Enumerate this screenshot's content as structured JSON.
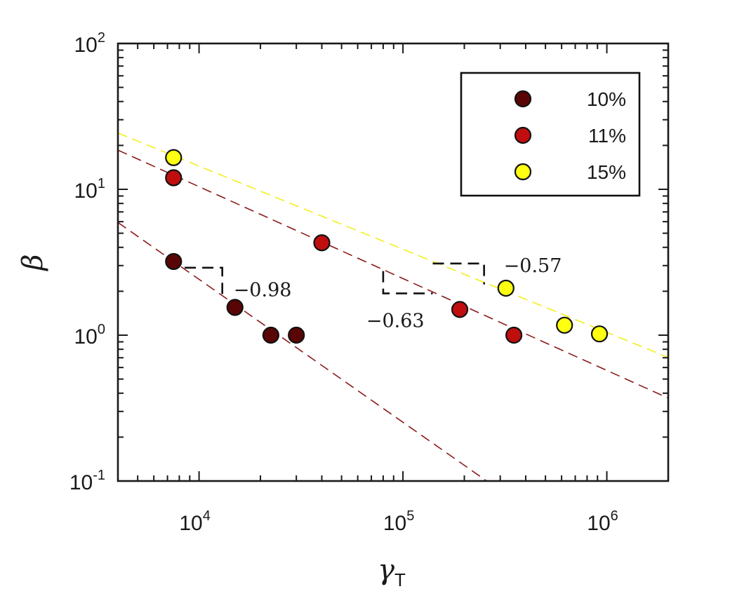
{
  "chart_data": {
    "type": "scatter",
    "xscale": "log",
    "yscale": "log",
    "xlim": [
      4000,
      2000000
    ],
    "ylim": [
      0.1,
      100
    ],
    "xlabel": {
      "symbol": "γ",
      "subscript": "T"
    },
    "ylabel": "β",
    "xticks": [
      {
        "base": "10",
        "exp": "4",
        "value": 10000
      },
      {
        "base": "10",
        "exp": "5",
        "value": 100000
      },
      {
        "base": "10",
        "exp": "6",
        "value": 1000000
      }
    ],
    "yticks": [
      {
        "base": "10",
        "exp": "-1",
        "value": 0.1
      },
      {
        "base": "10",
        "exp": "0",
        "value": 1
      },
      {
        "base": "10",
        "exp": "1",
        "value": 10
      },
      {
        "base": "10",
        "exp": "2",
        "value": 100
      }
    ],
    "legend_position": "top-right",
    "series": [
      {
        "name": "10%",
        "color": "#5a0505",
        "x": [
          7500,
          15000,
          22500,
          30000
        ],
        "y": [
          3.2,
          1.55,
          1.0,
          1.0
        ],
        "fit": {
          "slope": -0.98,
          "x0": 7500,
          "y0": 3.2,
          "line_color": "#8b1a1a"
        }
      },
      {
        "name": "11%",
        "color": "#c00e0e",
        "x": [
          7500,
          40000,
          190000,
          350000
        ],
        "y": [
          12,
          4.3,
          1.5,
          1.0
        ],
        "fit": {
          "slope": -0.63,
          "x0": 7500,
          "y0": 12.5,
          "line_color": "#8b1a1a"
        }
      },
      {
        "name": "15%",
        "color": "#ffff10",
        "x": [
          7500,
          320000,
          620000,
          920000
        ],
        "y": [
          16.5,
          2.1,
          1.17,
          1.02
        ],
        "fit": {
          "slope": -0.57,
          "x0": 7500,
          "y0": 17,
          "line_color": "#f2ee1a"
        }
      }
    ],
    "slope_annotations": [
      {
        "label": "−0.98",
        "slope": -0.98,
        "x1": 8500,
        "x2": 13000,
        "y_top": 2.9
      },
      {
        "label": "−0.63",
        "slope": -0.63,
        "x1": 80000,
        "x2": 140000,
        "y_top": 2.75
      },
      {
        "label": "−0.57",
        "slope": -0.57,
        "x1": 140000,
        "x2": 250000,
        "y_top": 3.1
      }
    ]
  }
}
